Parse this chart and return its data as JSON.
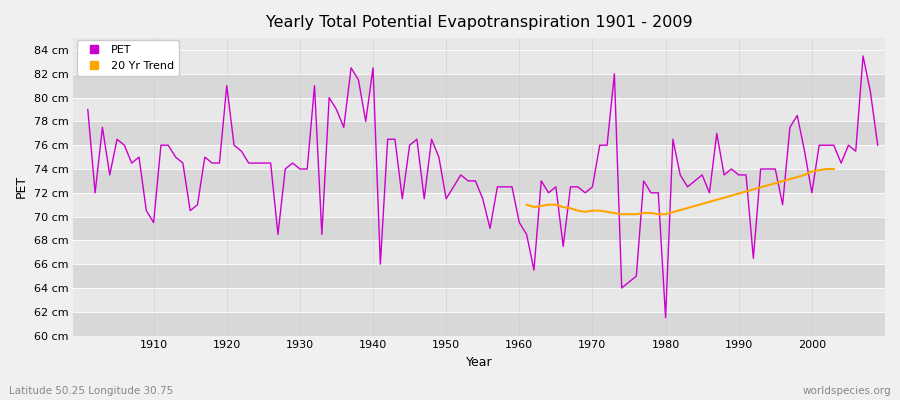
{
  "title": "Yearly Total Potential Evapotranspiration 1901 - 2009",
  "xlabel": "Year",
  "ylabel": "PET",
  "bottom_left": "Latitude 50.25 Longitude 30.75",
  "bottom_right": "worldspecies.org",
  "ylim": [
    60,
    85
  ],
  "ytick_vals": [
    60,
    62,
    64,
    66,
    68,
    70,
    72,
    74,
    76,
    78,
    80,
    82,
    84
  ],
  "xlim": [
    1899,
    2010
  ],
  "pet_color": "#cc00cc",
  "trend_color": "#FFA500",
  "fig_bg_color": "#f0f0f0",
  "plot_bg_color": "#e8e8e8",
  "pet_years": [
    1901,
    1902,
    1903,
    1904,
    1905,
    1906,
    1907,
    1908,
    1909,
    1910,
    1911,
    1912,
    1913,
    1914,
    1915,
    1916,
    1917,
    1918,
    1919,
    1920,
    1921,
    1922,
    1923,
    1924,
    1925,
    1926,
    1927,
    1928,
    1929,
    1930,
    1931,
    1932,
    1933,
    1934,
    1935,
    1936,
    1937,
    1938,
    1939,
    1940,
    1941,
    1942,
    1943,
    1944,
    1945,
    1946,
    1947,
    1948,
    1949,
    1950,
    1951,
    1952,
    1953,
    1954,
    1955,
    1956,
    1957,
    1958,
    1959,
    1960,
    1961,
    1962,
    1963,
    1964,
    1965,
    1966,
    1967,
    1968,
    1969,
    1970,
    1971,
    1972,
    1973,
    1974,
    1975,
    1976,
    1977,
    1978,
    1979,
    1980,
    1981,
    1982,
    1983,
    1984,
    1985,
    1986,
    1987,
    1988,
    1989,
    1990,
    1991,
    1992,
    1993,
    1994,
    1995,
    1996,
    1997,
    1998,
    1999,
    2000,
    2001,
    2002,
    2003,
    2004,
    2005,
    2006,
    2007,
    2008,
    2009
  ],
  "pet_values": [
    79.0,
    72.0,
    77.5,
    73.5,
    76.5,
    76.0,
    74.5,
    75.0,
    70.5,
    69.5,
    76.0,
    76.0,
    75.0,
    74.5,
    70.5,
    71.0,
    75.0,
    74.5,
    74.5,
    81.0,
    76.0,
    75.5,
    74.5,
    74.5,
    74.5,
    74.5,
    68.5,
    74.0,
    74.5,
    74.0,
    74.0,
    81.0,
    68.5,
    80.0,
    79.0,
    77.5,
    82.5,
    81.5,
    78.0,
    82.5,
    66.0,
    76.5,
    76.5,
    71.5,
    76.0,
    76.5,
    71.5,
    76.5,
    75.0,
    71.5,
    72.5,
    73.5,
    73.0,
    73.0,
    71.5,
    69.0,
    72.5,
    72.5,
    72.5,
    69.5,
    68.5,
    65.5,
    73.0,
    72.0,
    72.5,
    67.5,
    72.5,
    72.5,
    72.0,
    72.5,
    76.0,
    76.0,
    82.0,
    64.0,
    64.5,
    65.0,
    73.0,
    72.0,
    72.0,
    61.5,
    76.5,
    73.5,
    72.5,
    73.0,
    73.5,
    72.0,
    77.0,
    73.5,
    74.0,
    73.5,
    73.5,
    66.5,
    74.0,
    74.0,
    74.0,
    71.0,
    77.5,
    78.5,
    75.5,
    72.0,
    76.0,
    76.0,
    76.0,
    74.5,
    76.0,
    75.5,
    83.5,
    80.5,
    76.0
  ],
  "trend_years": [
    1961,
    1962,
    1963,
    1964,
    1965,
    1966,
    1967,
    1968,
    1969,
    1970,
    1971,
    1972,
    1973,
    1974,
    1975,
    1976,
    1977,
    1978,
    1979,
    1980,
    1999,
    2000,
    2001,
    2002,
    2003
  ],
  "trend_values": [
    71.0,
    70.8,
    70.9,
    71.0,
    71.0,
    70.8,
    70.7,
    70.5,
    70.4,
    70.5,
    70.5,
    70.4,
    70.3,
    70.2,
    70.2,
    70.2,
    70.3,
    70.3,
    70.2,
    70.2,
    73.5,
    73.8,
    73.9,
    74.0,
    74.0
  ]
}
